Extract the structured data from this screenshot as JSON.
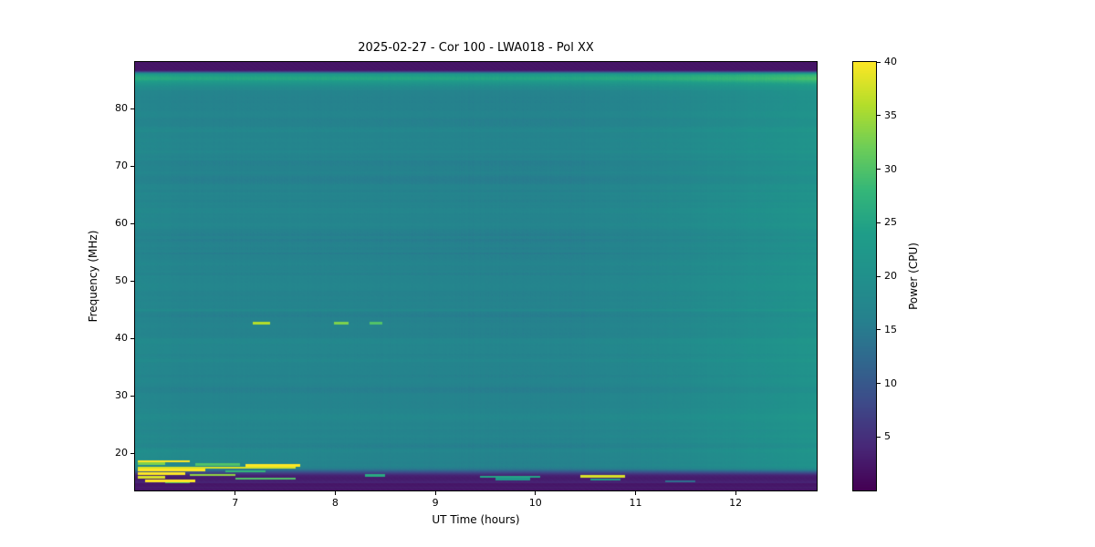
{
  "chart_data": {
    "type": "heatmap",
    "title": "2025-02-27 - Cor 100 - LWA018 - Pol XX",
    "xlabel": "UT Time (hours)",
    "ylabel": "Frequency (MHz)",
    "colorbar_label": "Power (CPU)",
    "x_range": [
      6.0,
      12.81
    ],
    "y_range": [
      13.5,
      88.1
    ],
    "x_ticks": [
      7,
      8,
      9,
      10,
      11,
      12
    ],
    "y_ticks": [
      20,
      30,
      40,
      50,
      60,
      70,
      80
    ],
    "colorbar_range": [
      0,
      40
    ],
    "colorbar_ticks": [
      5,
      10,
      15,
      20,
      25,
      30,
      35,
      40
    ],
    "colormap": "viridis",
    "colormap_stops": [
      [
        0.0,
        "#440154"
      ],
      [
        0.1,
        "#482878"
      ],
      [
        0.2,
        "#3e4a89"
      ],
      [
        0.3,
        "#31688e"
      ],
      [
        0.4,
        "#26828e"
      ],
      [
        0.5,
        "#21918c"
      ],
      [
        0.6,
        "#1f9e89"
      ],
      [
        0.7,
        "#35b779"
      ],
      [
        0.8,
        "#6ece58"
      ],
      [
        0.9,
        "#b5de2b"
      ],
      [
        1.0,
        "#fde725"
      ]
    ],
    "background": {
      "base_power": 17.0,
      "description": "quiet teal background ~15-18 CPU with faint horizontal striping",
      "bright_band": {
        "center_freq": 85.2,
        "peak_boost": 7.5,
        "sigma2": 1.6
      },
      "dark_top_band": {
        "freq_above": 86.3,
        "power": 2.2
      },
      "dark_bottom_band": {
        "freq_below": 16.8,
        "power": 3.0
      },
      "bright_line_freqs": [
        44.9,
        20.6
      ],
      "right_side_brightening": {
        "start_time": 10.4,
        "gain": 1.3,
        "exponent": 1.3
      },
      "left_edge_brightening": {
        "end_time": 6.55,
        "gain": 1.4
      },
      "bottom_left_haze": {
        "center_freq": 19.4,
        "amp": 1.6,
        "end_time": 8.3
      }
    },
    "rfi_segments": [
      {
        "f": 42.6,
        "t0": 7.18,
        "t1": 7.35,
        "power": 36
      },
      {
        "f": 42.6,
        "t0": 7.99,
        "t1": 8.13,
        "power": 33
      },
      {
        "f": 42.6,
        "t0": 8.34,
        "t1": 8.47,
        "power": 30
      },
      {
        "f": 18.6,
        "t0": 6.03,
        "t1": 6.55,
        "power": 40
      },
      {
        "f": 18.2,
        "t0": 6.03,
        "t1": 6.3,
        "power": 33
      },
      {
        "f": 18.0,
        "t0": 6.6,
        "t1": 7.05,
        "power": 30
      },
      {
        "f": 17.9,
        "t0": 7.1,
        "t1": 7.65,
        "power": 40
      },
      {
        "f": 17.5,
        "t0": 6.03,
        "t1": 7.6,
        "power": 38
      },
      {
        "f": 17.1,
        "t0": 6.03,
        "t1": 6.7,
        "power": 40
      },
      {
        "f": 16.8,
        "t0": 6.9,
        "t1": 7.3,
        "power": 28
      },
      {
        "f": 16.4,
        "t0": 6.03,
        "t1": 6.5,
        "power": 40
      },
      {
        "f": 16.2,
        "t0": 6.55,
        "t1": 7.0,
        "power": 34
      },
      {
        "f": 15.8,
        "t0": 6.03,
        "t1": 6.3,
        "power": 38
      },
      {
        "f": 15.6,
        "t0": 7.0,
        "t1": 7.6,
        "power": 30
      },
      {
        "f": 15.2,
        "t0": 6.1,
        "t1": 6.6,
        "power": 40
      },
      {
        "f": 14.9,
        "t0": 6.3,
        "t1": 6.55,
        "power": 30
      },
      {
        "f": 16.1,
        "t0": 8.3,
        "t1": 8.5,
        "power": 26
      },
      {
        "f": 15.9,
        "t0": 9.45,
        "t1": 10.05,
        "power": 25
      },
      {
        "f": 15.5,
        "t0": 9.6,
        "t1": 9.95,
        "power": 22
      },
      {
        "f": 16.0,
        "t0": 10.45,
        "t1": 10.9,
        "power": 38
      },
      {
        "f": 15.4,
        "t0": 10.55,
        "t1": 10.85,
        "power": 24
      },
      {
        "f": 15.1,
        "t0": 11.3,
        "t1": 11.6,
        "power": 13
      }
    ]
  }
}
